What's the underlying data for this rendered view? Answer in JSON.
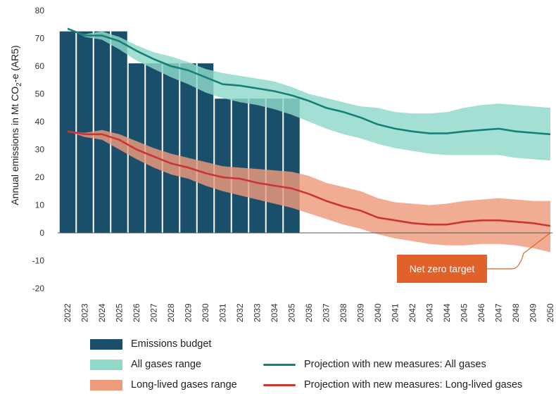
{
  "chart_data": {
    "type": "bar",
    "ylabel": "Annual emissions in Mt CO2-e (AR5)",
    "ylim": [
      -20,
      80
    ],
    "yticks": [
      80,
      70,
      60,
      50,
      40,
      30,
      20,
      10,
      0,
      -10,
      -20
    ],
    "categories": [
      "2022",
      "2023",
      "2024",
      "2025",
      "2026",
      "2027",
      "2028",
      "2029",
      "2030",
      "2031",
      "2032",
      "2033",
      "2034",
      "2035",
      "2036",
      "2037",
      "2038",
      "2039",
      "2040",
      "2041",
      "2042",
      "2043",
      "2044",
      "2045",
      "2046",
      "2047",
      "2048",
      "2049",
      "2050"
    ],
    "budget": {
      "name": "Emissions budget",
      "color": "#1a4f6b",
      "values": [
        72.5,
        72.5,
        72.5,
        72.5,
        61,
        61,
        61,
        61,
        61,
        48.3,
        48.3,
        48.3,
        48.3,
        48.3
      ]
    },
    "ranges": [
      {
        "name": "All gases range",
        "color": "#8fd9c9",
        "upper": [
          73.5,
          71.5,
          72.5,
          70.5,
          67.5,
          65,
          63.5,
          61.5,
          59,
          57.5,
          56.5,
          55.5,
          54.5,
          52.5,
          50,
          48.5,
          47,
          45.5,
          45,
          43.5,
          43,
          43,
          43.5,
          45,
          46,
          46.5,
          46,
          45.5,
          45
        ],
        "lower": [
          73.5,
          70.5,
          69.5,
          66,
          62,
          59,
          56,
          53.5,
          50.5,
          48.5,
          47,
          46,
          44.5,
          42.5,
          40,
          37.5,
          35.5,
          34,
          32,
          30.5,
          29.5,
          28.5,
          28,
          28,
          28,
          28,
          27,
          26.5,
          26
        ]
      },
      {
        "name": "Long-lived gases range",
        "color": "#ee9b7c",
        "upper": [
          36.5,
          36,
          37,
          35.5,
          33,
          30.5,
          28.5,
          27,
          25.5,
          24,
          23.5,
          23,
          22.5,
          22,
          20.5,
          18,
          16.5,
          15,
          12.5,
          11,
          10.5,
          10,
          10.5,
          11.5,
          12,
          12.5,
          12,
          11.5,
          11.5
        ],
        "lower": [
          36.5,
          34.5,
          33.5,
          30,
          26.5,
          23.5,
          21,
          19.5,
          17,
          15,
          13.5,
          12,
          10.5,
          9,
          7,
          5,
          3,
          1.5,
          -0.5,
          -2,
          -3,
          -4,
          -4.5,
          -4.5,
          -4,
          -4,
          -4.5,
          -5.5,
          -7
        ]
      }
    ],
    "series": [
      {
        "name": "Projection with new measures: All gases",
        "color": "#167f77",
        "values": [
          73.5,
          71,
          71,
          69,
          65.5,
          62.5,
          60,
          58.5,
          56,
          53.5,
          53,
          52,
          51,
          49.5,
          47.5,
          45,
          43.5,
          41.5,
          39,
          37.5,
          36.5,
          35.8,
          35.8,
          36.5,
          37,
          37.5,
          36.5,
          36,
          35.5
        ]
      },
      {
        "name": "Projection with new measures: Long-lived gases",
        "color": "#cc3434",
        "values": [
          36.5,
          35.5,
          35.5,
          33.5,
          30,
          27.5,
          25,
          23.5,
          21.5,
          20,
          19.5,
          18,
          17,
          16,
          14,
          11.5,
          9.5,
          8,
          5.5,
          4.5,
          3.5,
          3,
          3,
          4,
          4.5,
          4.5,
          4,
          3.5,
          2.5
        ]
      }
    ],
    "annotation": {
      "text": "Net zero target",
      "color": "#e0622a",
      "target_year": "2050",
      "target_value": 0
    },
    "legend": {
      "budget": "Emissions budget",
      "all_range": "All gases range",
      "ll_range": "Long-lived gases range",
      "proj_all": "Projection with new measures: All gases",
      "proj_ll": "Projection with new measures: Long-lived gases"
    }
  }
}
